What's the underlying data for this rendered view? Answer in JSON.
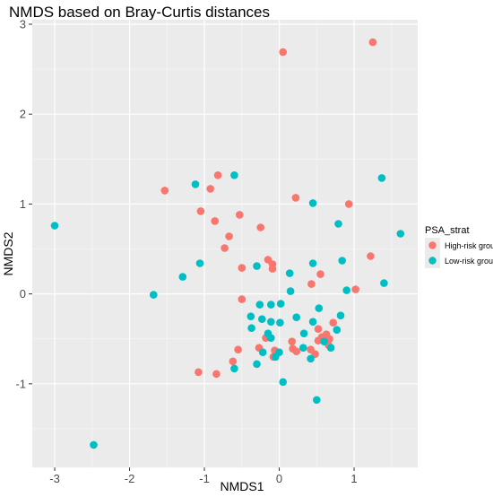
{
  "chart_data": {
    "type": "scatter",
    "title": "NMDS based on Bray-Curtis distances",
    "xlabel": "NMDS1",
    "ylabel": "NMDS2",
    "xlim": [
      -3.3,
      1.85
    ],
    "ylim": [
      -1.93,
      3.05
    ],
    "x_ticks": [
      -3,
      -2,
      -1,
      0,
      1
    ],
    "y_ticks": [
      -1,
      0,
      1,
      2,
      3
    ],
    "x_tick_labels": [
      "-3",
      "-2",
      "-1",
      "0",
      "1"
    ],
    "y_tick_labels": [
      "-1",
      "0",
      "1",
      "2",
      "3"
    ],
    "grid": true,
    "legend_position": "right",
    "legend_title": "PSA_strat",
    "series": [
      {
        "name": "High-risk group",
        "color": "#F8766D",
        "points": [
          [
            0.05,
            2.69
          ],
          [
            1.25,
            2.8
          ],
          [
            -1.53,
            1.15
          ],
          [
            -0.82,
            1.32
          ],
          [
            -0.92,
            1.17
          ],
          [
            0.22,
            1.07
          ],
          [
            0.93,
            1.0
          ],
          [
            -1.05,
            0.92
          ],
          [
            -0.86,
            0.81
          ],
          [
            -0.53,
            0.88
          ],
          [
            -0.25,
            0.74
          ],
          [
            -0.67,
            0.64
          ],
          [
            -0.73,
            0.51
          ],
          [
            -0.15,
            0.38
          ],
          [
            -0.09,
            0.33
          ],
          [
            -0.09,
            0.28
          ],
          [
            -0.5,
            0.29
          ],
          [
            1.22,
            0.42
          ],
          [
            0.55,
            0.22
          ],
          [
            0.43,
            0.11
          ],
          [
            1.02,
            0.05
          ],
          [
            -0.5,
            -0.06
          ],
          [
            0.72,
            -0.32
          ],
          [
            0.52,
            -0.39
          ],
          [
            0.63,
            -0.45
          ],
          [
            0.57,
            -0.48
          ],
          [
            0.67,
            -0.5
          ],
          [
            0.52,
            -0.52
          ],
          [
            0.17,
            -0.53
          ],
          [
            0.66,
            -0.57
          ],
          [
            0.42,
            -0.62
          ],
          [
            0.23,
            -0.64
          ],
          [
            0.18,
            -0.61
          ],
          [
            -0.06,
            -0.63
          ],
          [
            -0.27,
            -0.6
          ],
          [
            -0.08,
            -0.7
          ],
          [
            -0.55,
            -0.62
          ],
          [
            0.48,
            -0.67
          ],
          [
            -0.62,
            -0.75
          ],
          [
            -1.08,
            -0.87
          ],
          [
            -0.84,
            -0.89
          ],
          [
            -0.18,
            -0.49
          ]
        ]
      },
      {
        "name": "Low-risk group",
        "color": "#00BFC4",
        "points": [
          [
            -0.6,
            1.32
          ],
          [
            -1.12,
            1.22
          ],
          [
            1.37,
            1.29
          ],
          [
            0.45,
            1.01
          ],
          [
            0.79,
            0.78
          ],
          [
            -3.0,
            0.76
          ],
          [
            1.62,
            0.67
          ],
          [
            -1.06,
            0.34
          ],
          [
            -1.29,
            0.19
          ],
          [
            -0.3,
            0.31
          ],
          [
            0.45,
            0.34
          ],
          [
            0.84,
            0.37
          ],
          [
            0.14,
            0.23
          ],
          [
            -1.68,
            -0.01
          ],
          [
            1.4,
            0.12
          ],
          [
            0.15,
            0.03
          ],
          [
            0.9,
            0.04
          ],
          [
            -0.26,
            -0.12
          ],
          [
            -0.11,
            -0.12
          ],
          [
            0.02,
            -0.11
          ],
          [
            0.53,
            -0.16
          ],
          [
            0.82,
            -0.24
          ],
          [
            -0.38,
            -0.25
          ],
          [
            0.23,
            -0.26
          ],
          [
            -0.23,
            -0.28
          ],
          [
            -0.11,
            -0.31
          ],
          [
            0.01,
            -0.32
          ],
          [
            0.45,
            -0.31
          ],
          [
            -0.37,
            -0.38
          ],
          [
            0.77,
            -0.4
          ],
          [
            -0.15,
            -0.44
          ],
          [
            0.33,
            -0.44
          ],
          [
            -0.11,
            -0.49
          ],
          [
            0.6,
            -0.53
          ],
          [
            0.32,
            -0.6
          ],
          [
            0.69,
            -0.6
          ],
          [
            -0.22,
            -0.65
          ],
          [
            0.0,
            -0.65
          ],
          [
            -0.05,
            -0.7
          ],
          [
            0.42,
            -0.72
          ],
          [
            -0.3,
            -0.78
          ],
          [
            -0.6,
            -0.83
          ],
          [
            0.05,
            -0.98
          ],
          [
            0.5,
            -1.18
          ],
          [
            -2.48,
            -1.68
          ]
        ]
      }
    ]
  }
}
